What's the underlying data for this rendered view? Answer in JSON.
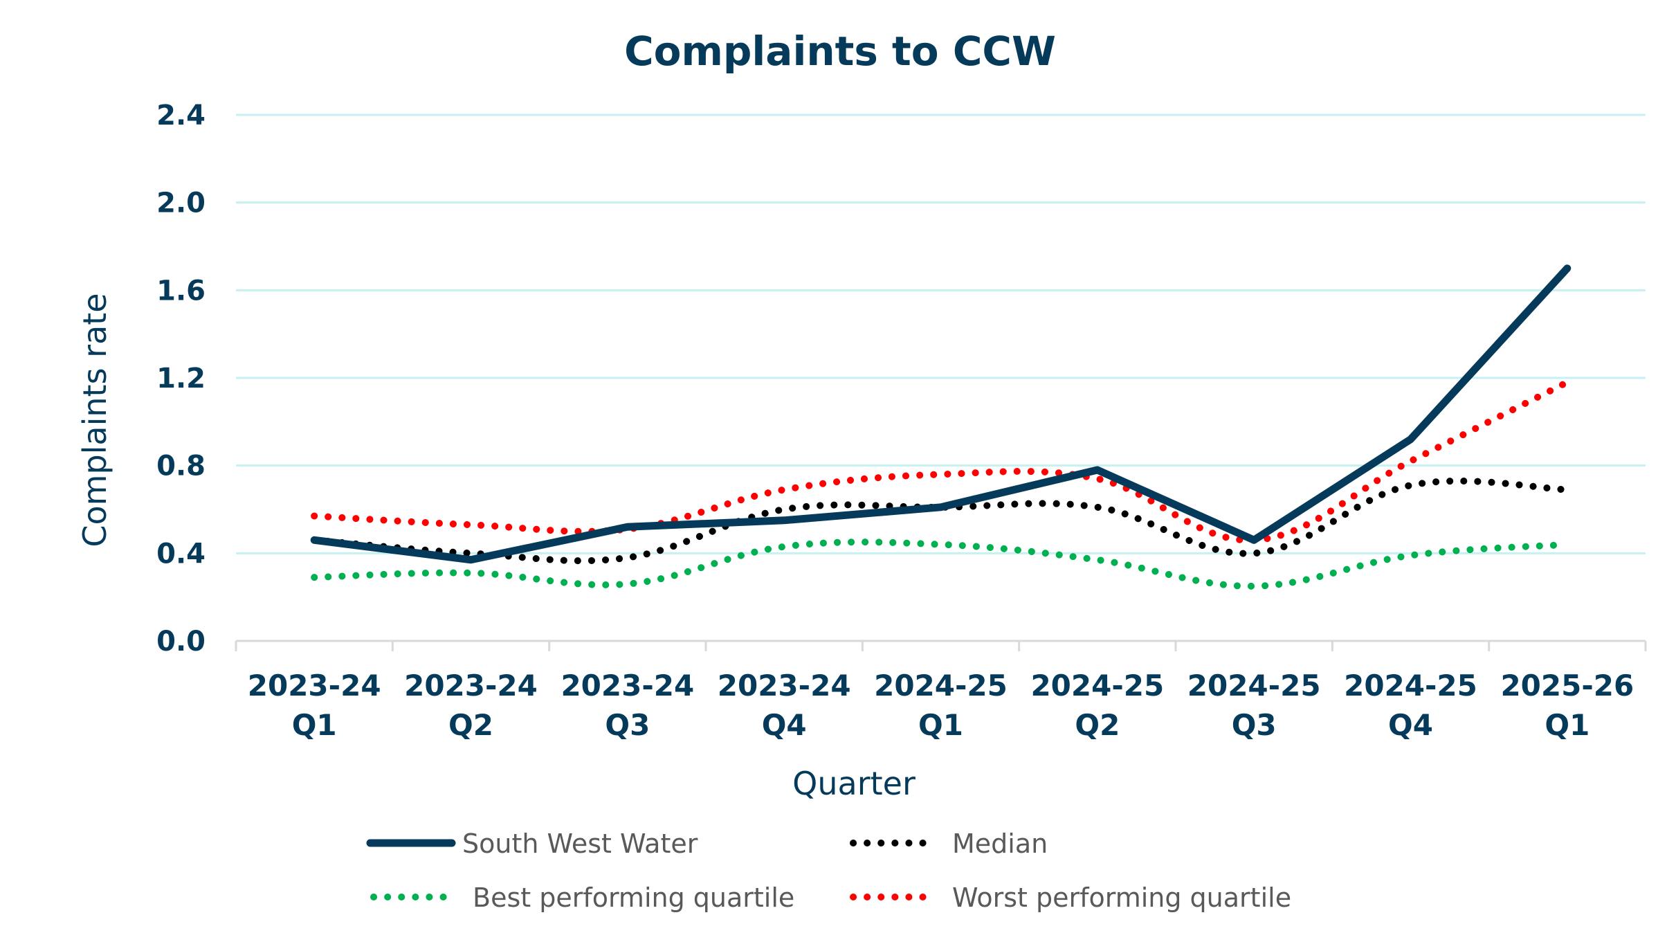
{
  "chart_data": {
    "type": "line",
    "title": "Complaints to CCW",
    "xlabel": "Quarter",
    "ylabel": "Complaints rate",
    "ylim": [
      0,
      2.4
    ],
    "yticks": [
      "0.0",
      "0.4",
      "0.8",
      "1.2",
      "1.6",
      "2.0",
      "2.4"
    ],
    "ytick_values": [
      0,
      0.4,
      0.8,
      1.2,
      1.6,
      2.0,
      2.4
    ],
    "grid": true,
    "legend_position": "bottom",
    "categories": [
      [
        "2023-24",
        "Q1"
      ],
      [
        "2023-24",
        "Q2"
      ],
      [
        "2023-24",
        "Q3"
      ],
      [
        "2023-24",
        "Q4"
      ],
      [
        "2024-25",
        "Q1"
      ],
      [
        "2024-25",
        "Q2"
      ],
      [
        "2024-25",
        "Q3"
      ],
      [
        "2024-25",
        "Q4"
      ],
      [
        "2025-26",
        "Q1"
      ]
    ],
    "series": [
      {
        "name": "South West Water",
        "style": "solid",
        "smooth": false,
        "color": "#053a5b",
        "values": [
          0.46,
          0.37,
          0.52,
          0.55,
          0.61,
          0.78,
          0.46,
          0.92,
          1.7
        ]
      },
      {
        "name": "Median",
        "style": "dotted",
        "smooth": true,
        "color": "#000000",
        "values": [
          0.46,
          0.4,
          0.38,
          0.6,
          0.61,
          0.61,
          0.4,
          0.71,
          0.69
        ]
      },
      {
        "name": "Best performing quartile",
        "style": "dotted",
        "smooth": true,
        "color": "#00b050",
        "values": [
          0.29,
          0.31,
          0.26,
          0.43,
          0.44,
          0.37,
          0.25,
          0.39,
          0.44
        ]
      },
      {
        "name": "Worst performing quartile",
        "style": "dotted",
        "smooth": true,
        "color": "#ff0000",
        "values": [
          0.57,
          0.53,
          0.51,
          0.69,
          0.76,
          0.74,
          0.46,
          0.82,
          1.18
        ]
      }
    ],
    "legend": [
      [
        "South West Water",
        "Median"
      ],
      [
        "Best performing quartile",
        "Worst performing quartile"
      ]
    ],
    "colors": {
      "text": "#053a5b",
      "grid": "#c5f1f3",
      "axis": "#d9d9d9",
      "legend_text": "#595959"
    }
  }
}
